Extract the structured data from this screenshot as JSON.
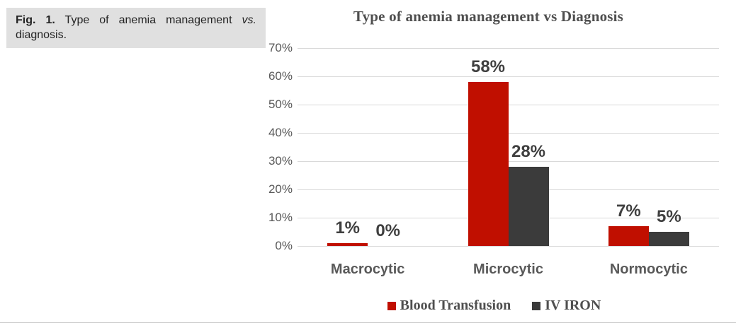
{
  "caption": {
    "fig_label": "Fig. 1.",
    "line1_rest": "Type of anemia management",
    "vs_italic": "vs.",
    "line2": "diagnosis."
  },
  "chart_data": {
    "type": "bar",
    "title": "Type of anemia management vs Diagnosis",
    "categories": [
      "Macrocytic",
      "Microcytic",
      "Normocytic"
    ],
    "series": [
      {
        "name": "Blood Transfusion",
        "color": "#c00f00",
        "values": [
          1,
          58,
          7
        ]
      },
      {
        "name": "IV IRON",
        "color": "#3b3b3b",
        "values": [
          0,
          28,
          5
        ]
      }
    ],
    "value_suffix": "%",
    "yticks": [
      70,
      60,
      50,
      40,
      30,
      20,
      10,
      0
    ],
    "ylim": [
      0,
      70
    ],
    "grid": true,
    "data_labels": true,
    "legend_position": "bottom",
    "gridline_color": "#d9d9d9",
    "axis_label_color": "#595959",
    "data_label_color": "#3f3f3f"
  }
}
